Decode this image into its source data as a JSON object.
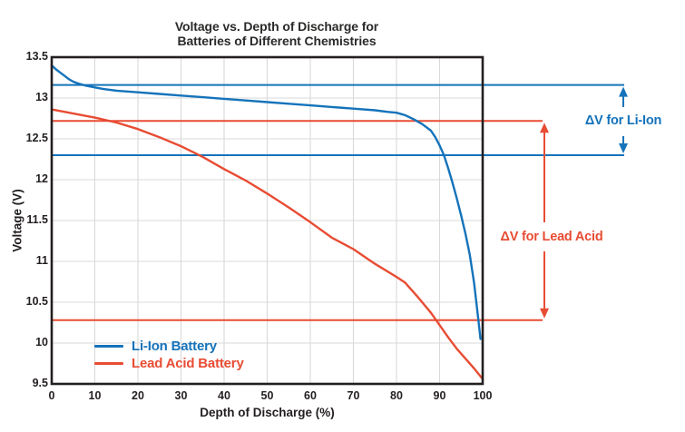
{
  "chart_data": {
    "type": "line",
    "title": "Voltage vs. Depth of Discharge for Batteries of Different Chemistries",
    "title_lines": [
      "Voltage vs. Depth of Discharge for",
      "Batteries of Different Chemistries"
    ],
    "xlabel": "Depth of Discharge (%)",
    "ylabel": "Voltage (V)",
    "xlim": [
      0,
      100
    ],
    "ylim": [
      9.5,
      13.5
    ],
    "xticks": [
      0,
      10,
      20,
      30,
      40,
      50,
      60,
      70,
      80,
      90,
      100
    ],
    "yticks": [
      9.5,
      10,
      10.5,
      11,
      11.5,
      12,
      12.5,
      13,
      13.5
    ],
    "grid": true,
    "legend_position": "lower-left-inside",
    "colors": {
      "axis": "#231F20",
      "grid": "#D9D9D9",
      "background": "#FFFFFF",
      "li_ion_blue": "#1573BA",
      "lead_acid_red": "#E84C33"
    },
    "series": [
      {
        "name": "Li-Ion Battery",
        "color": "#1573BA",
        "points": [
          [
            0,
            13.4
          ],
          [
            1,
            13.35
          ],
          [
            2,
            13.31
          ],
          [
            3,
            13.27
          ],
          [
            4,
            13.23
          ],
          [
            5,
            13.2
          ],
          [
            6,
            13.18
          ],
          [
            8,
            13.15
          ],
          [
            10,
            13.13
          ],
          [
            12,
            13.11
          ],
          [
            15,
            13.09
          ],
          [
            20,
            13.07
          ],
          [
            25,
            13.05
          ],
          [
            30,
            13.03
          ],
          [
            35,
            13.01
          ],
          [
            40,
            12.99
          ],
          [
            45,
            12.97
          ],
          [
            50,
            12.95
          ],
          [
            55,
            12.93
          ],
          [
            60,
            12.91
          ],
          [
            65,
            12.89
          ],
          [
            70,
            12.87
          ],
          [
            75,
            12.85
          ],
          [
            78,
            12.83
          ],
          [
            80,
            12.82
          ],
          [
            82,
            12.79
          ],
          [
            84,
            12.74
          ],
          [
            86,
            12.68
          ],
          [
            88,
            12.6
          ],
          [
            89,
            12.52
          ],
          [
            90,
            12.42
          ],
          [
            91,
            12.3
          ],
          [
            92,
            12.14
          ],
          [
            93,
            11.96
          ],
          [
            94,
            11.77
          ],
          [
            95,
            11.56
          ],
          [
            96,
            11.34
          ],
          [
            97,
            11.08
          ],
          [
            98,
            10.74
          ],
          [
            99,
            10.28
          ],
          [
            99.5,
            10.05
          ]
        ]
      },
      {
        "name": "Lead Acid Battery",
        "color": "#E84C33",
        "points": [
          [
            0,
            12.86
          ],
          [
            5,
            12.81
          ],
          [
            10,
            12.76
          ],
          [
            15,
            12.7
          ],
          [
            20,
            12.62
          ],
          [
            25,
            12.52
          ],
          [
            30,
            12.41
          ],
          [
            35,
            12.28
          ],
          [
            40,
            12.13
          ],
          [
            45,
            11.99
          ],
          [
            50,
            11.83
          ],
          [
            55,
            11.66
          ],
          [
            60,
            11.48
          ],
          [
            65,
            11.29
          ],
          [
            70,
            11.15
          ],
          [
            75,
            10.97
          ],
          [
            80,
            10.81
          ],
          [
            82,
            10.74
          ],
          [
            85,
            10.56
          ],
          [
            88,
            10.37
          ],
          [
            90,
            10.22
          ],
          [
            92,
            10.07
          ],
          [
            94,
            9.93
          ],
          [
            96,
            9.81
          ],
          [
            98,
            9.69
          ],
          [
            100,
            9.56
          ]
        ]
      }
    ],
    "reference_lines": [
      {
        "id": "li-ion-upper",
        "value": 13.16,
        "color": "#1573BA"
      },
      {
        "id": "li-ion-lower",
        "value": 12.3,
        "color": "#1573BA"
      },
      {
        "id": "lead-acid-upper",
        "value": 12.72,
        "color": "#E84C33"
      },
      {
        "id": "lead-acid-lower",
        "value": 10.28,
        "color": "#E84C33"
      }
    ],
    "annotations": [
      {
        "id": "li-ion",
        "text": "ΔV for Li-Ion",
        "color": "#1573BA",
        "from_value": 13.16,
        "to_value": 12.3
      },
      {
        "id": "lead-acid",
        "text": "ΔV for Lead Acid",
        "color": "#E84C33",
        "from_value": 12.72,
        "to_value": 10.28
      }
    ]
  }
}
